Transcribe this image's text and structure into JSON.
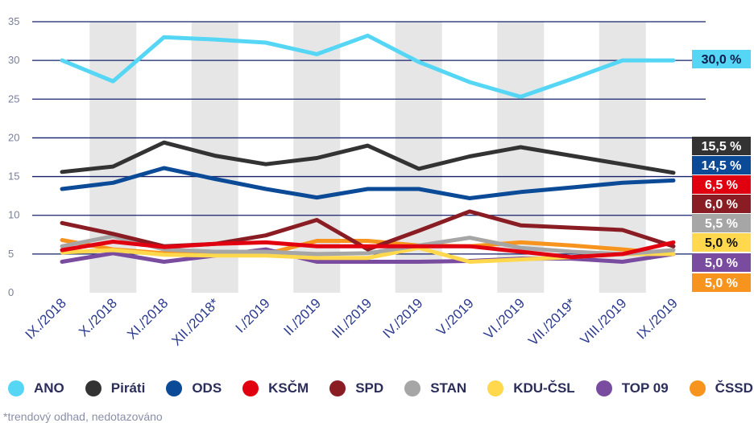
{
  "chart_data": {
    "type": "line",
    "title": "",
    "xlabel": "",
    "ylabel": "",
    "ylim": [
      0,
      35
    ],
    "yticks": [
      0,
      5,
      10,
      15,
      20,
      25,
      30,
      35
    ],
    "grid": true,
    "legend_position": "bottom",
    "categories": [
      "IX./2018",
      "X./2018",
      "XI./2018",
      "XII./2018*",
      "I./2019",
      "II./2019",
      "III./2019",
      "IV./2019",
      "V./2019",
      "VI./2019",
      "VII./2019*",
      "VIII./2019",
      "IX./2019"
    ],
    "series": [
      {
        "name": "ANO",
        "color": "#55d6f5",
        "values": [
          30.0,
          27.3,
          33.0,
          32.7,
          32.3,
          30.8,
          33.2,
          29.8,
          27.2,
          25.3,
          27.6,
          30.0,
          30.0
        ],
        "label": "30,0 %"
      },
      {
        "name": "Piráti",
        "color": "#333333",
        "values": [
          15.6,
          16.3,
          19.4,
          17.7,
          16.6,
          17.4,
          19.0,
          16.0,
          17.6,
          18.8,
          17.7,
          16.6,
          15.5
        ],
        "label": "15,5 %"
      },
      {
        "name": "ODS",
        "color": "#0a4a97",
        "values": [
          13.4,
          14.2,
          16.1,
          14.7,
          13.4,
          12.3,
          13.4,
          13.4,
          12.2,
          13.0,
          13.6,
          14.2,
          14.5
        ],
        "label": "14,5 %"
      },
      {
        "name": "KSČM",
        "color": "#e1000f",
        "values": [
          5.5,
          6.6,
          5.9,
          6.3,
          6.5,
          6.0,
          6.0,
          6.0,
          6.0,
          5.3,
          4.6,
          5.0,
          6.5
        ],
        "label": "6,5 %"
      },
      {
        "name": "SPD",
        "color": "#8a1c24",
        "values": [
          9.0,
          7.6,
          6.0,
          6.3,
          7.4,
          9.4,
          5.6,
          8.0,
          10.5,
          8.7,
          8.4,
          8.1,
          6.0
        ],
        "label": "6,0 %"
      },
      {
        "name": "STAN",
        "color": "#a6a6a6",
        "values": [
          6.0,
          7.3,
          5.6,
          5.3,
          5.3,
          5.0,
          5.1,
          6.1,
          7.1,
          5.8,
          5.3,
          5.0,
          5.5
        ],
        "label": "5,5 %"
      },
      {
        "name": "KDU-ČSL",
        "color": "#ffd84d",
        "values": [
          5.2,
          5.5,
          4.9,
          4.8,
          4.8,
          4.5,
          4.5,
          5.8,
          4.0,
          4.3,
          4.6,
          5.0,
          5.0
        ],
        "label": "5,0 %"
      },
      {
        "name": "TOP 09",
        "color": "#7a4ca0",
        "values": [
          4.0,
          5.1,
          4.0,
          4.8,
          5.6,
          4.0,
          4.0,
          4.0,
          4.1,
          4.4,
          4.4,
          4.0,
          5.0
        ],
        "label": "5,0 %"
      },
      {
        "name": "ČSSD",
        "color": "#f7941e",
        "values": [
          6.8,
          5.6,
          5.1,
          5.0,
          5.0,
          6.7,
          6.7,
          6.1,
          6.0,
          6.5,
          6.1,
          5.6,
          5.0
        ],
        "label": "5,0 %"
      }
    ]
  },
  "footnote": "*trendový odhad, nedotazováno"
}
